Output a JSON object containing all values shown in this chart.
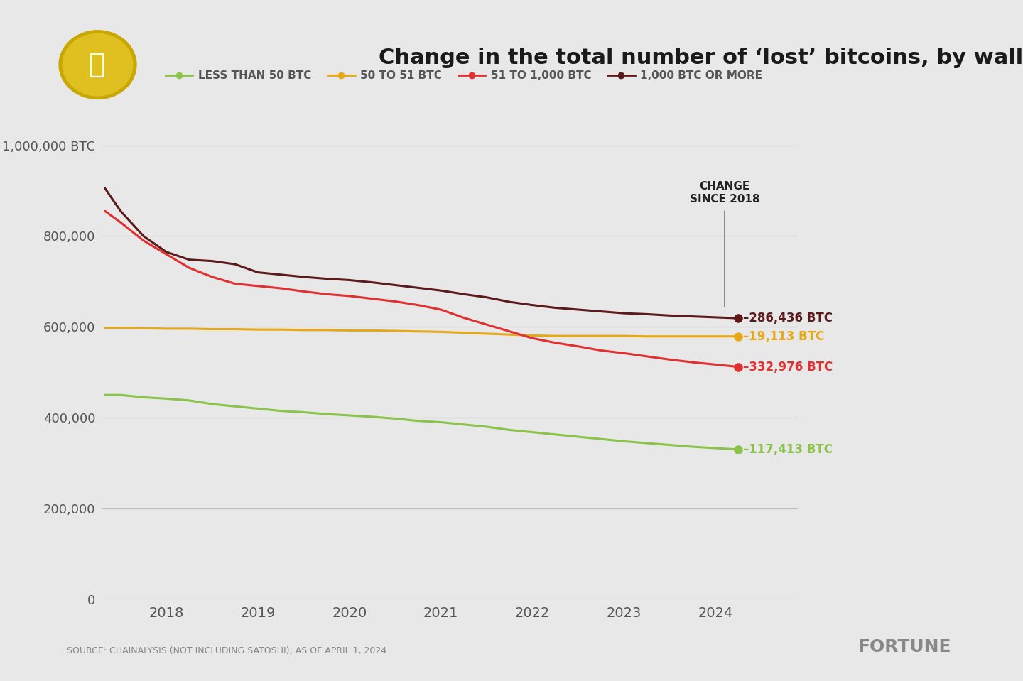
{
  "title": "Change in the total number of ‘lost’ bitcoins, by wallet size",
  "background_color": "#e8e8e8",
  "source_text": "SOURCE: CHAINALYSIS (NOT INCLUDING SATOSHI); AS OF APRIL 1, 2024",
  "fortune_text": "FORTUNE",
  "ylabel": "1,000,000 BTC",
  "yticks": [
    0,
    200000,
    400000,
    600000,
    800000,
    1000000
  ],
  "ytick_labels": [
    "0",
    "200,000",
    "400,000",
    "600,000",
    "800,000",
    "1,000,000 BTC"
  ],
  "xlim_start": 2017.3,
  "xlim_end": 2024.9,
  "ylim": [
    0,
    1050000
  ],
  "legend_labels": [
    "LESS THAN 50 BTC",
    "50 TO 51 BTC",
    "51 TO 1,000 BTC",
    "1,000 BTC OR MORE"
  ],
  "line_colors": [
    "#8bc34a",
    "#e6a817",
    "#e03030",
    "#5c1a1a"
  ],
  "change_labels": [
    "–117,413 BTC",
    "–19,113 BTC",
    "–332,976 BTC",
    "–286,436 BTC"
  ],
  "series_lt50": {
    "x": [
      2017.33,
      2017.5,
      2017.75,
      2018.0,
      2018.25,
      2018.5,
      2018.75,
      2019.0,
      2019.25,
      2019.5,
      2019.75,
      2020.0,
      2020.25,
      2020.5,
      2020.75,
      2021.0,
      2021.25,
      2021.5,
      2021.75,
      2022.0,
      2022.25,
      2022.5,
      2022.75,
      2023.0,
      2023.25,
      2023.5,
      2023.75,
      2024.0,
      2024.25
    ],
    "y": [
      450000,
      450000,
      445000,
      442000,
      438000,
      430000,
      425000,
      420000,
      415000,
      412000,
      408000,
      405000,
      402000,
      398000,
      393000,
      390000,
      385000,
      380000,
      373000,
      368000,
      363000,
      358000,
      353000,
      348000,
      344000,
      340000,
      336000,
      333000,
      330000
    ]
  },
  "series_50to51": {
    "x": [
      2017.33,
      2017.5,
      2017.75,
      2018.0,
      2018.25,
      2018.5,
      2018.75,
      2019.0,
      2019.25,
      2019.5,
      2019.75,
      2020.0,
      2020.25,
      2020.5,
      2020.75,
      2021.0,
      2021.25,
      2021.5,
      2021.75,
      2022.0,
      2022.25,
      2022.5,
      2022.75,
      2023.0,
      2023.25,
      2023.5,
      2023.75,
      2024.0,
      2024.25
    ],
    "y": [
      598000,
      598000,
      597000,
      596000,
      596000,
      595000,
      595000,
      594000,
      594000,
      593000,
      593000,
      592000,
      592000,
      591000,
      590000,
      589000,
      587000,
      585000,
      583000,
      581000,
      580000,
      580000,
      580000,
      580000,
      579000,
      579000,
      579000,
      579000,
      579000
    ]
  },
  "series_51to1000": {
    "x": [
      2017.33,
      2017.5,
      2017.75,
      2018.0,
      2018.25,
      2018.5,
      2018.75,
      2019.0,
      2019.25,
      2019.5,
      2019.75,
      2020.0,
      2020.25,
      2020.5,
      2020.75,
      2021.0,
      2021.25,
      2021.5,
      2021.75,
      2022.0,
      2022.25,
      2022.5,
      2022.75,
      2023.0,
      2023.25,
      2023.5,
      2023.75,
      2024.0,
      2024.25
    ],
    "y": [
      855000,
      830000,
      790000,
      760000,
      730000,
      710000,
      695000,
      690000,
      685000,
      678000,
      672000,
      668000,
      662000,
      656000,
      648000,
      638000,
      620000,
      605000,
      590000,
      575000,
      565000,
      557000,
      548000,
      542000,
      535000,
      528000,
      522000,
      517000,
      512000
    ]
  },
  "series_1000plus": {
    "x": [
      2017.33,
      2017.5,
      2017.75,
      2018.0,
      2018.25,
      2018.5,
      2018.75,
      2019.0,
      2019.25,
      2019.5,
      2019.75,
      2020.0,
      2020.25,
      2020.5,
      2020.75,
      2021.0,
      2021.25,
      2021.5,
      2021.75,
      2022.0,
      2022.25,
      2022.5,
      2022.75,
      2023.0,
      2023.25,
      2023.5,
      2023.75,
      2024.0,
      2024.25
    ],
    "y": [
      905000,
      855000,
      800000,
      765000,
      748000,
      745000,
      738000,
      720000,
      715000,
      710000,
      706000,
      703000,
      698000,
      692000,
      686000,
      680000,
      672000,
      665000,
      655000,
      648000,
      642000,
      638000,
      634000,
      630000,
      628000,
      625000,
      623000,
      621000,
      619000
    ]
  }
}
